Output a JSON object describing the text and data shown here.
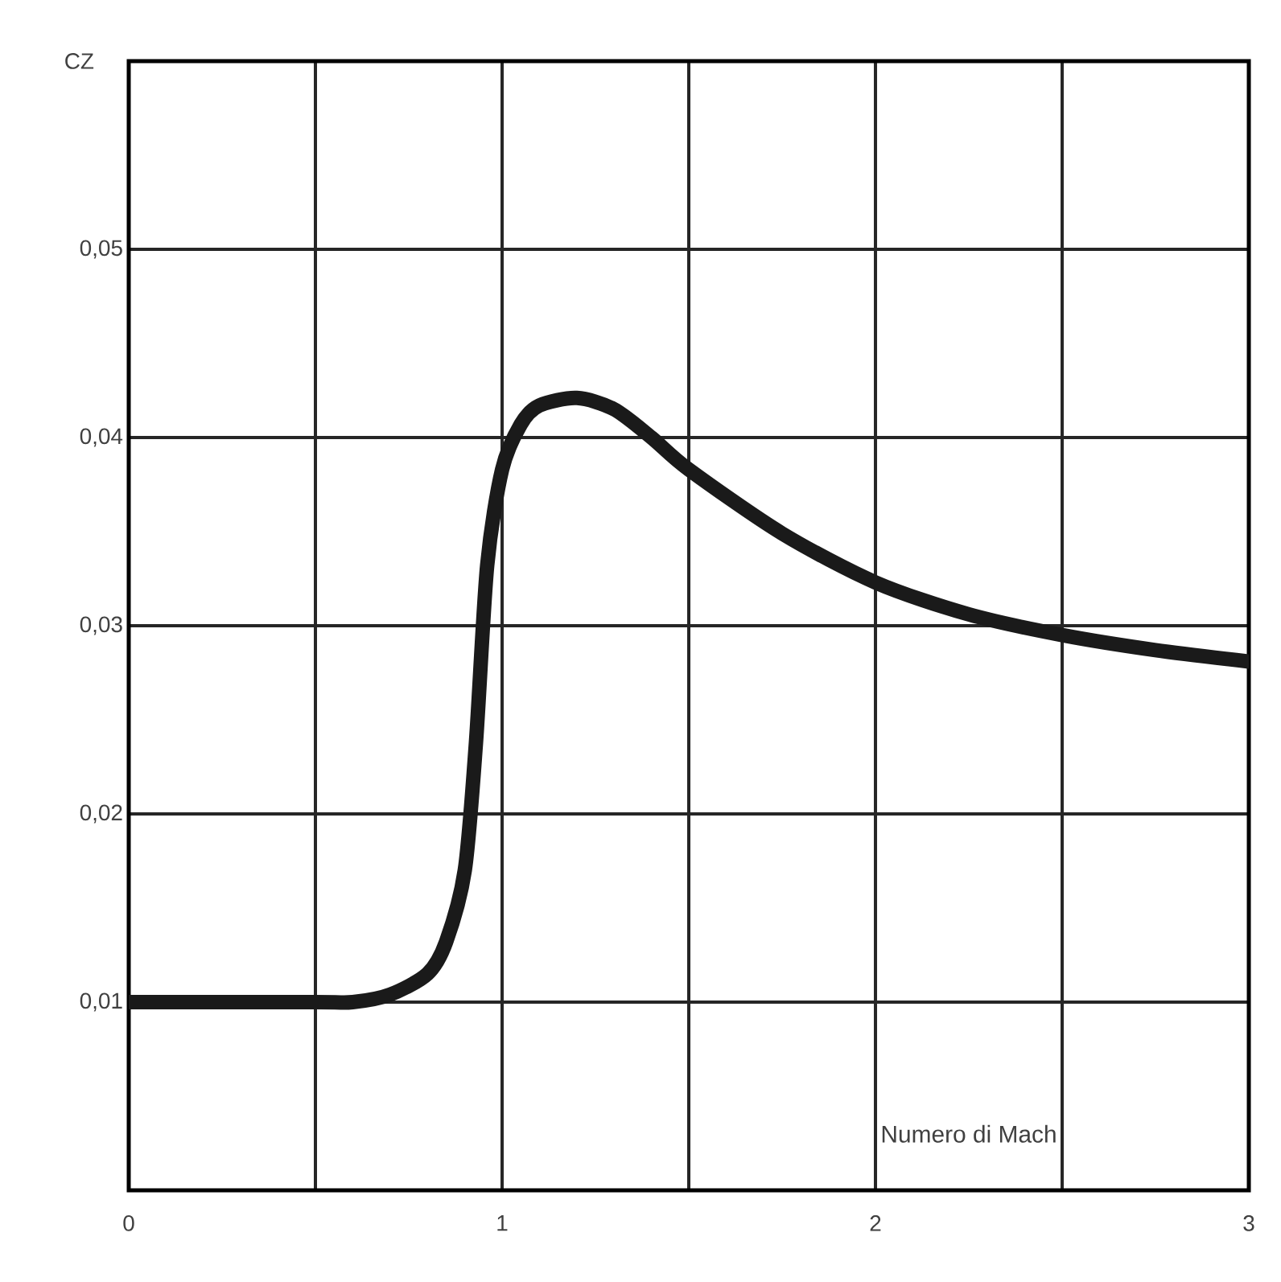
{
  "chart_data": {
    "type": "line",
    "xlabel": "Numero di Mach",
    "ylabel": "CZ",
    "x": [
      0,
      0.5,
      0.6,
      0.7,
      0.8,
      0.85,
      0.9,
      0.93,
      0.96,
      1.0,
      1.05,
      1.1,
      1.2,
      1.3,
      1.4,
      1.5,
      1.75,
      2,
      2.25,
      2.5,
      2.75,
      3
    ],
    "series": [
      {
        "color": "#1a1a1a",
        "values": [
          0.01,
          0.01,
          0.01,
          0.0104,
          0.0115,
          0.0132,
          0.017,
          0.0238,
          0.0332,
          0.0383,
          0.0407,
          0.0417,
          0.0421,
          0.0415,
          0.04,
          0.0383,
          0.0349,
          0.0323,
          0.0306,
          0.0295,
          0.0287,
          0.0281
        ]
      }
    ],
    "xlim": [
      0,
      3
    ],
    "ylim": [
      0,
      0.06
    ],
    "xticks": [
      0,
      {
        "value": 0.5,
        "label": null
      },
      1,
      {
        "value": 1.5,
        "label": null
      },
      2,
      {
        "value": 2.5,
        "label": null
      },
      3
    ],
    "yticks": [
      {
        "value": 0,
        "label": null
      },
      {
        "value": 0.01,
        "label": "0,01"
      },
      {
        "value": 0.02,
        "label": "0,02"
      },
      {
        "value": 0.03,
        "label": "0,03"
      },
      {
        "value": 0.04,
        "label": "0,04"
      },
      {
        "value": 0.05,
        "label": "0,05"
      },
      {
        "value": 0.06,
        "label": null
      }
    ],
    "grid": true,
    "marker": "none",
    "line_style": "solid"
  }
}
